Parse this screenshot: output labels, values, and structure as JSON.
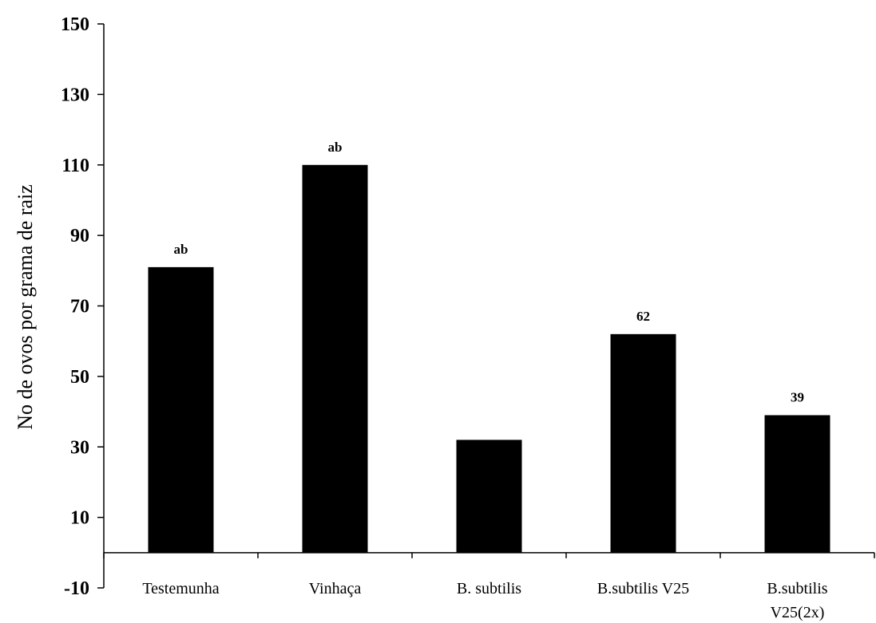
{
  "chart_data": {
    "type": "bar",
    "categories": [
      "Testemunha",
      "Vinhaça",
      "B. subtilis",
      "B.subtilis V25",
      "B.subtilis V25(2x)"
    ],
    "category_lines": [
      [
        "Testemunha"
      ],
      [
        "Vinhaça"
      ],
      [
        "B. subtilis"
      ],
      [
        "B.subtilis V25"
      ],
      [
        "B.subtilis",
        "V25(2x)"
      ]
    ],
    "values": [
      81,
      110,
      32,
      62,
      39
    ],
    "data_labels": [
      "ab",
      "ab",
      "",
      "62",
      "39"
    ],
    "ylabel": "No de ovos por grama de raiz",
    "xlabel": "",
    "ylim": [
      -10,
      150
    ],
    "yticks": [
      -10,
      10,
      30,
      50,
      70,
      90,
      110,
      130,
      150
    ],
    "bar_color": "#000000",
    "grid": false,
    "legend": "none"
  }
}
